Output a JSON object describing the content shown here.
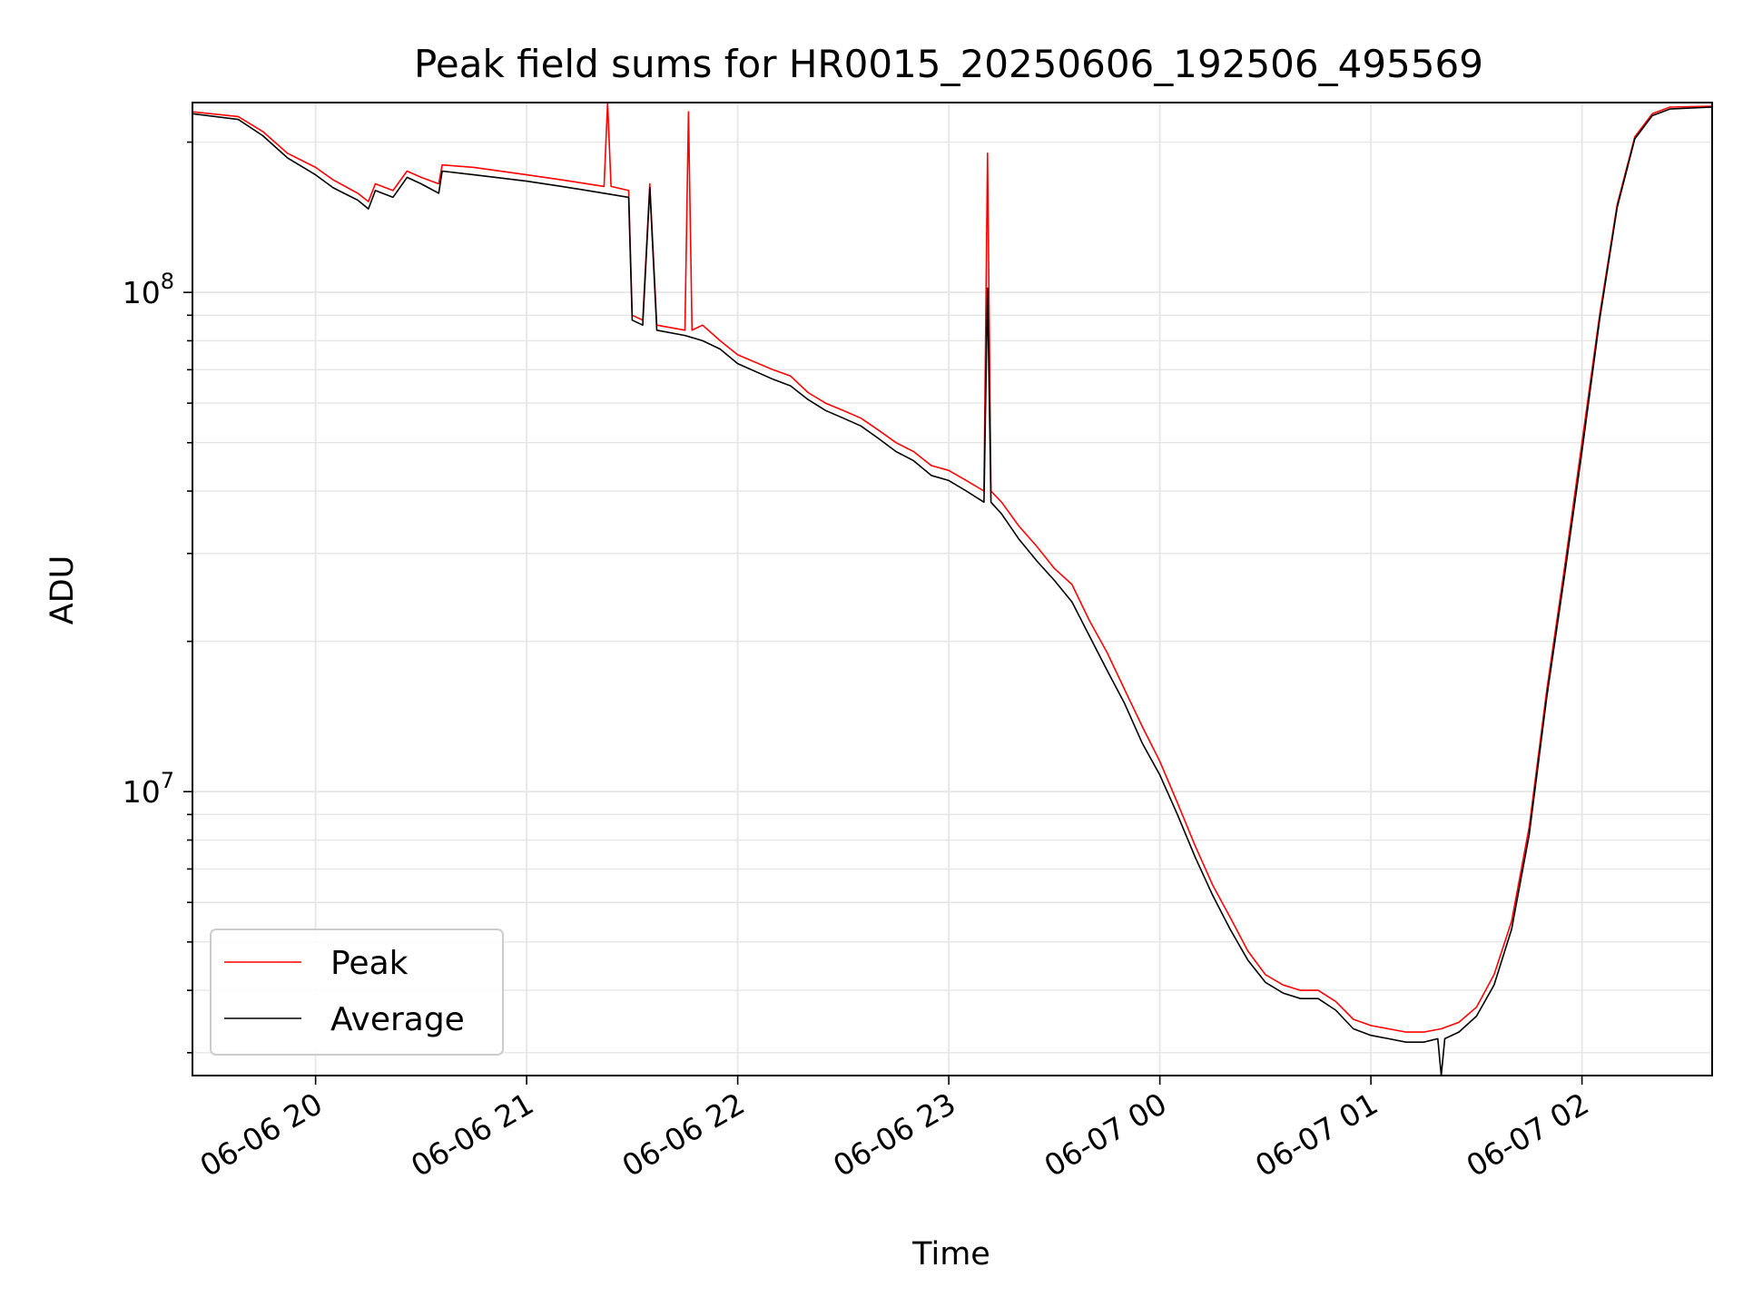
{
  "chart_data": {
    "type": "line",
    "title": "Peak field sums for HR0015_20250606_192506_495569",
    "xlabel": "Time",
    "ylabel": "ADU",
    "y_scale": "log",
    "ylim": [
      2700000,
      240000000
    ],
    "xlim": [
      "2025-06-06 19:25",
      "2025-06-07 02:37"
    ],
    "grid": true,
    "legend_position": "lower-left",
    "x_ticks": [
      {
        "value": "2025-06-06 20:00",
        "label": "06-06 20"
      },
      {
        "value": "2025-06-06 21:00",
        "label": "06-06 21"
      },
      {
        "value": "2025-06-06 22:00",
        "label": "06-06 22"
      },
      {
        "value": "2025-06-06 23:00",
        "label": "06-06 23"
      },
      {
        "value": "2025-06-07 00:00",
        "label": "06-07 00"
      },
      {
        "value": "2025-06-07 01:00",
        "label": "06-07 01"
      },
      {
        "value": "2025-06-07 02:00",
        "label": "06-07 02"
      }
    ],
    "y_ticks": [
      {
        "value": 10000000,
        "base": "10",
        "exp": "7"
      },
      {
        "value": 100000000,
        "base": "10",
        "exp": "8"
      }
    ],
    "series": [
      {
        "name": "Peak",
        "color": "#ff0000",
        "points": [
          [
            "2025-06-06 19:25",
            230000000
          ],
          [
            "2025-06-06 19:38",
            225000000
          ],
          [
            "2025-06-06 19:45",
            210000000
          ],
          [
            "2025-06-06 19:52",
            190000000
          ],
          [
            "2025-06-06 20:00",
            178000000
          ],
          [
            "2025-06-06 20:05",
            168000000
          ],
          [
            "2025-06-06 20:12",
            158000000
          ],
          [
            "2025-06-06 20:15",
            152000000
          ],
          [
            "2025-06-06 20:17",
            165000000
          ],
          [
            "2025-06-06 20:22",
            160000000
          ],
          [
            "2025-06-06 20:26",
            175000000
          ],
          [
            "2025-06-06 20:30",
            170000000
          ],
          [
            "2025-06-06 20:35",
            165000000
          ],
          [
            "2025-06-06 20:36",
            180000000
          ],
          [
            "2025-06-06 20:45",
            178000000
          ],
          [
            "2025-06-06 21:00",
            172000000
          ],
          [
            "2025-06-06 21:10",
            168000000
          ],
          [
            "2025-06-06 21:22",
            163000000
          ],
          [
            "2025-06-06 21:23",
            240000000
          ],
          [
            "2025-06-06 21:24",
            163000000
          ],
          [
            "2025-06-06 21:29",
            160000000
          ],
          [
            "2025-06-06 21:30",
            90000000
          ],
          [
            "2025-06-06 21:33",
            88000000
          ],
          [
            "2025-06-06 21:35",
            165000000
          ],
          [
            "2025-06-06 21:37",
            86000000
          ],
          [
            "2025-06-06 21:45",
            84000000
          ],
          [
            "2025-06-06 21:46",
            230000000
          ],
          [
            "2025-06-06 21:47",
            84000000
          ],
          [
            "2025-06-06 21:50",
            86000000
          ],
          [
            "2025-06-06 21:55",
            80000000
          ],
          [
            "2025-06-06 22:00",
            75000000
          ],
          [
            "2025-06-06 22:10",
            70000000
          ],
          [
            "2025-06-06 22:15",
            68000000
          ],
          [
            "2025-06-06 22:20",
            63000000
          ],
          [
            "2025-06-06 22:25",
            60000000
          ],
          [
            "2025-06-06 22:30",
            58000000
          ],
          [
            "2025-06-06 22:35",
            56000000
          ],
          [
            "2025-06-06 22:40",
            53000000
          ],
          [
            "2025-06-06 22:45",
            50000000
          ],
          [
            "2025-06-06 22:50",
            48000000
          ],
          [
            "2025-06-06 22:55",
            45000000
          ],
          [
            "2025-06-06 23:00",
            44000000
          ],
          [
            "2025-06-06 23:05",
            42000000
          ],
          [
            "2025-06-06 23:10",
            40000000
          ],
          [
            "2025-06-06 23:11",
            190000000
          ],
          [
            "2025-06-06 23:12",
            40000000
          ],
          [
            "2025-06-06 23:15",
            38000000
          ],
          [
            "2025-06-06 23:20",
            34000000
          ],
          [
            "2025-06-06 23:25",
            31000000
          ],
          [
            "2025-06-06 23:30",
            28000000
          ],
          [
            "2025-06-06 23:35",
            26000000
          ],
          [
            "2025-06-06 23:40",
            22000000
          ],
          [
            "2025-06-06 23:45",
            19000000
          ],
          [
            "2025-06-06 23:50",
            16000000
          ],
          [
            "2025-06-06 23:55",
            13500000
          ],
          [
            "2025-06-07 00:00",
            11500000
          ],
          [
            "2025-06-07 00:05",
            9500000
          ],
          [
            "2025-06-07 00:10",
            7800000
          ],
          [
            "2025-06-07 00:15",
            6500000
          ],
          [
            "2025-06-07 00:20",
            5600000
          ],
          [
            "2025-06-07 00:25",
            4800000
          ],
          [
            "2025-06-07 00:30",
            4300000
          ],
          [
            "2025-06-07 00:35",
            4100000
          ],
          [
            "2025-06-07 00:40",
            4000000
          ],
          [
            "2025-06-07 00:45",
            4000000
          ],
          [
            "2025-06-07 00:50",
            3800000
          ],
          [
            "2025-06-07 00:55",
            3500000
          ],
          [
            "2025-06-07 01:00",
            3400000
          ],
          [
            "2025-06-07 01:05",
            3350000
          ],
          [
            "2025-06-07 01:10",
            3300000
          ],
          [
            "2025-06-07 01:15",
            3300000
          ],
          [
            "2025-06-07 01:20",
            3350000
          ],
          [
            "2025-06-07 01:25",
            3450000
          ],
          [
            "2025-06-07 01:30",
            3700000
          ],
          [
            "2025-06-07 01:35",
            4300000
          ],
          [
            "2025-06-07 01:40",
            5500000
          ],
          [
            "2025-06-07 01:45",
            8500000
          ],
          [
            "2025-06-07 01:50",
            16000000
          ],
          [
            "2025-06-07 01:55",
            28000000
          ],
          [
            "2025-06-07 02:00",
            50000000
          ],
          [
            "2025-06-07 02:05",
            90000000
          ],
          [
            "2025-06-07 02:10",
            150000000
          ],
          [
            "2025-06-07 02:15",
            205000000
          ],
          [
            "2025-06-07 02:20",
            228000000
          ],
          [
            "2025-06-07 02:25",
            235000000
          ],
          [
            "2025-06-07 02:37",
            236000000
          ]
        ]
      },
      {
        "name": "Average",
        "color": "#000000",
        "points": [
          [
            "2025-06-06 19:25",
            228000000
          ],
          [
            "2025-06-06 19:38",
            222000000
          ],
          [
            "2025-06-06 19:45",
            206000000
          ],
          [
            "2025-06-06 19:52",
            186000000
          ],
          [
            "2025-06-06 20:00",
            172000000
          ],
          [
            "2025-06-06 20:05",
            162000000
          ],
          [
            "2025-06-06 20:12",
            153000000
          ],
          [
            "2025-06-06 20:15",
            147000000
          ],
          [
            "2025-06-06 20:17",
            160000000
          ],
          [
            "2025-06-06 20:22",
            155000000
          ],
          [
            "2025-06-06 20:26",
            170000000
          ],
          [
            "2025-06-06 20:30",
            165000000
          ],
          [
            "2025-06-06 20:35",
            158000000
          ],
          [
            "2025-06-06 20:36",
            175000000
          ],
          [
            "2025-06-06 20:45",
            172000000
          ],
          [
            "2025-06-06 21:00",
            167000000
          ],
          [
            "2025-06-06 21:10",
            163000000
          ],
          [
            "2025-06-06 21:22",
            158000000
          ],
          [
            "2025-06-06 21:29",
            155000000
          ],
          [
            "2025-06-06 21:30",
            88000000
          ],
          [
            "2025-06-06 21:33",
            86000000
          ],
          [
            "2025-06-06 21:35",
            162000000
          ],
          [
            "2025-06-06 21:37",
            84000000
          ],
          [
            "2025-06-06 21:45",
            82000000
          ],
          [
            "2025-06-06 21:50",
            80000000
          ],
          [
            "2025-06-06 21:55",
            77000000
          ],
          [
            "2025-06-06 22:00",
            72000000
          ],
          [
            "2025-06-06 22:10",
            67000000
          ],
          [
            "2025-06-06 22:15",
            65000000
          ],
          [
            "2025-06-06 22:20",
            61000000
          ],
          [
            "2025-06-06 22:25",
            58000000
          ],
          [
            "2025-06-06 22:30",
            56000000
          ],
          [
            "2025-06-06 22:35",
            54000000
          ],
          [
            "2025-06-06 22:40",
            51000000
          ],
          [
            "2025-06-06 22:45",
            48000000
          ],
          [
            "2025-06-06 22:50",
            46000000
          ],
          [
            "2025-06-06 22:55",
            43000000
          ],
          [
            "2025-06-06 23:00",
            42000000
          ],
          [
            "2025-06-06 23:05",
            40000000
          ],
          [
            "2025-06-06 23:10",
            38000000
          ],
          [
            "2025-06-06 23:11",
            102000000
          ],
          [
            "2025-06-06 23:12",
            38000000
          ],
          [
            "2025-06-06 23:15",
            36000000
          ],
          [
            "2025-06-06 23:20",
            32000000
          ],
          [
            "2025-06-06 23:25",
            29000000
          ],
          [
            "2025-06-06 23:30",
            26500000
          ],
          [
            "2025-06-06 23:35",
            24000000
          ],
          [
            "2025-06-06 23:40",
            20500000
          ],
          [
            "2025-06-06 23:45",
            17500000
          ],
          [
            "2025-06-06 23:50",
            15000000
          ],
          [
            "2025-06-06 23:55",
            12500000
          ],
          [
            "2025-06-07 00:00",
            10800000
          ],
          [
            "2025-06-07 00:05",
            9000000
          ],
          [
            "2025-06-07 00:10",
            7400000
          ],
          [
            "2025-06-07 00:15",
            6200000
          ],
          [
            "2025-06-07 00:20",
            5300000
          ],
          [
            "2025-06-07 00:25",
            4600000
          ],
          [
            "2025-06-07 00:30",
            4150000
          ],
          [
            "2025-06-07 00:35",
            3950000
          ],
          [
            "2025-06-07 00:40",
            3850000
          ],
          [
            "2025-06-07 00:45",
            3850000
          ],
          [
            "2025-06-07 00:50",
            3650000
          ],
          [
            "2025-06-07 00:55",
            3350000
          ],
          [
            "2025-06-07 01:00",
            3250000
          ],
          [
            "2025-06-07 01:05",
            3200000
          ],
          [
            "2025-06-07 01:10",
            3150000
          ],
          [
            "2025-06-07 01:15",
            3150000
          ],
          [
            "2025-06-07 01:19",
            3200000
          ],
          [
            "2025-06-07 01:20",
            2700000
          ],
          [
            "2025-06-07 01:21",
            3200000
          ],
          [
            "2025-06-07 01:25",
            3300000
          ],
          [
            "2025-06-07 01:30",
            3550000
          ],
          [
            "2025-06-07 01:35",
            4100000
          ],
          [
            "2025-06-07 01:40",
            5300000
          ],
          [
            "2025-06-07 01:45",
            8200000
          ],
          [
            "2025-06-07 01:50",
            15500000
          ],
          [
            "2025-06-07 01:55",
            27000000
          ],
          [
            "2025-06-07 02:00",
            48000000
          ],
          [
            "2025-06-07 02:05",
            88000000
          ],
          [
            "2025-06-07 02:10",
            148000000
          ],
          [
            "2025-06-07 02:15",
            203000000
          ],
          [
            "2025-06-07 02:20",
            226000000
          ],
          [
            "2025-06-07 02:25",
            233000000
          ],
          [
            "2025-06-07 02:37",
            235000000
          ]
        ]
      }
    ]
  }
}
